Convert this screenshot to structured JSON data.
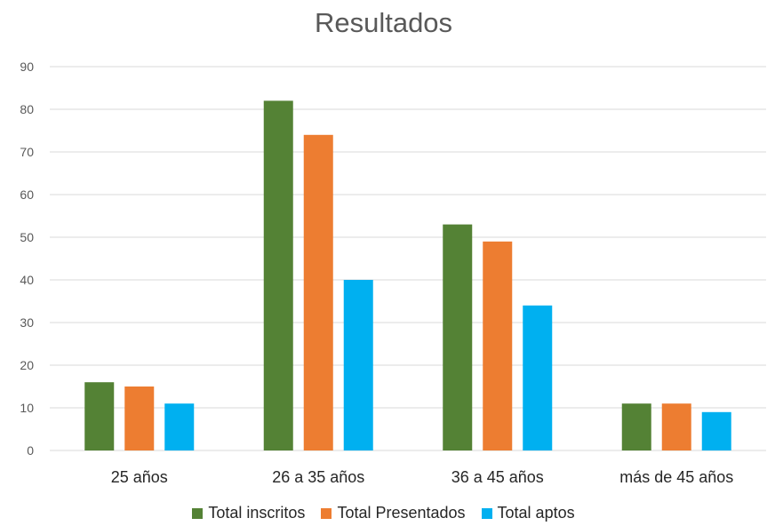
{
  "chart_data": {
    "type": "bar",
    "title": "Resultados",
    "categories": [
      "25 años",
      "26 a 35 años",
      "36 a 45 años",
      "más de 45 años"
    ],
    "series": [
      {
        "name": "Total inscritos",
        "color": "#548235",
        "values": [
          16,
          82,
          53,
          11
        ]
      },
      {
        "name": "Total Presentados",
        "color": "#ED7D31",
        "values": [
          15,
          74,
          49,
          11
        ]
      },
      {
        "name": "Total aptos",
        "color": "#00B0F0",
        "values": [
          11,
          40,
          34,
          9
        ]
      }
    ],
    "yticks": [
      "0",
      "10",
      "20",
      "30",
      "40",
      "50",
      "60",
      "70",
      "80",
      "90"
    ],
    "ylim": [
      0,
      90
    ],
    "grid": true,
    "legend_position": "bottom"
  }
}
